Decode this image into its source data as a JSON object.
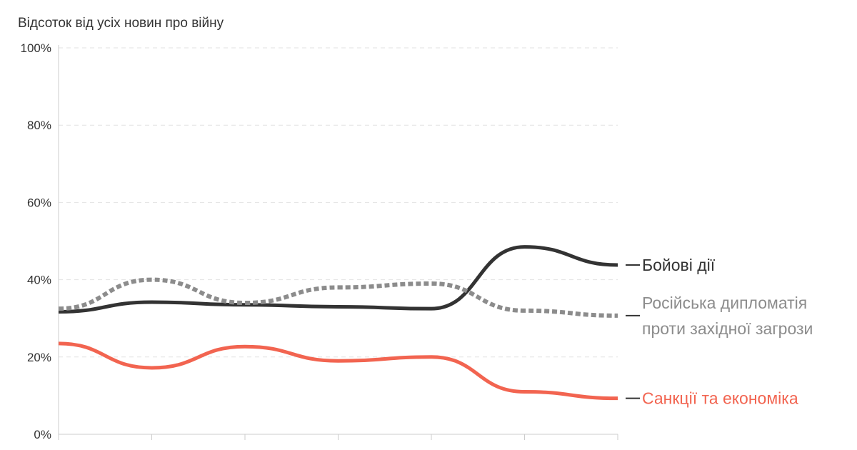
{
  "chart_data": {
    "type": "line",
    "ylabel": "Відсоток від усіх новин про війну",
    "ylim": [
      0,
      100
    ],
    "y_ticks": [
      0,
      20,
      40,
      60,
      80,
      100
    ],
    "y_tick_labels": [
      "0%",
      "20%",
      "40%",
      "60%",
      "80%",
      "100%"
    ],
    "x": [
      1,
      2,
      3,
      4,
      5,
      6,
      7
    ],
    "x_tick_labels": [
      "",
      "",
      "",
      "",
      "",
      "",
      ""
    ],
    "grid": true,
    "series": [
      {
        "key": "combat",
        "name": "Бойові дії",
        "label_lines": [
          "Бойові дії"
        ],
        "color": "#333333",
        "dashed": false,
        "values": [
          31.7,
          34.2,
          33.5,
          33.0,
          32.5,
          48.5,
          43.8
        ]
      },
      {
        "key": "diplomacy",
        "name": "Російська дипломатія проти західної загрози",
        "label_lines": [
          "Російська дипломатія",
          "проти західної загрози"
        ],
        "color": "#8c8c8c",
        "dashed": true,
        "values": [
          32.5,
          40.0,
          34.0,
          38.0,
          39.0,
          32.0,
          30.7
        ]
      },
      {
        "key": "sanctions",
        "name": "Санкції та економіка",
        "label_lines": [
          "Санкції та економіка"
        ],
        "color": "#f26450",
        "dashed": false,
        "values": [
          23.5,
          17.2,
          22.7,
          19.0,
          20.0,
          11.0,
          9.3
        ]
      }
    ]
  }
}
